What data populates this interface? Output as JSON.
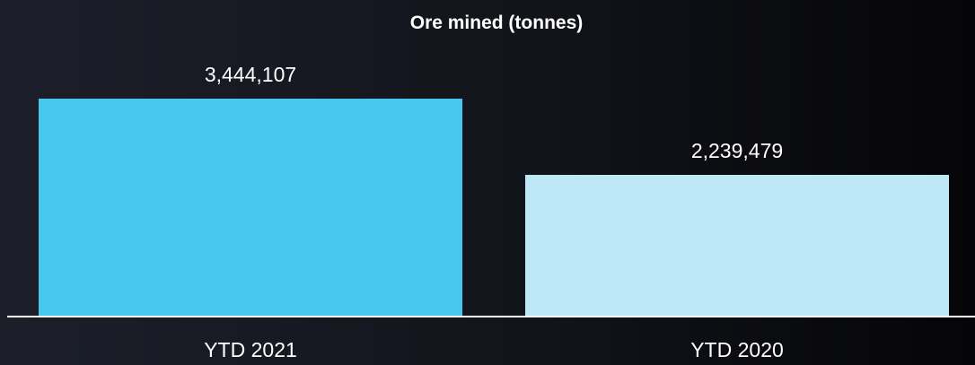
{
  "chart_data": {
    "type": "bar",
    "title": "Ore mined (tonnes)",
    "categories": [
      "YTD 2021",
      "YTD 2020"
    ],
    "values": [
      3444107,
      2239479
    ],
    "value_labels": [
      "3,444,107",
      "2,239,479"
    ],
    "bar_colors": [
      "#48c8ef",
      "#bfe8f7"
    ],
    "axis_color": "#ffffff",
    "text_color": "#ffffff",
    "xlabel": "",
    "ylabel": "",
    "ylim": [
      0,
      4500000
    ],
    "grid": false,
    "legend": "none"
  }
}
